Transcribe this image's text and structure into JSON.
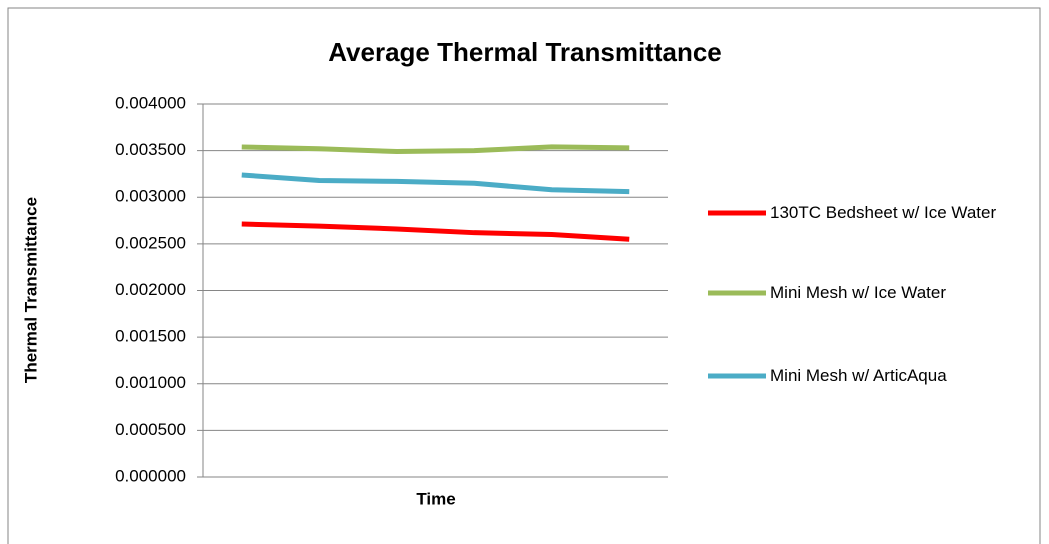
{
  "chart_data": {
    "type": "line",
    "title": "Average Thermal Transmittance",
    "x_label": "Time",
    "y_label": "Thermal Transmittance",
    "categories": [
      null,
      null,
      null,
      null,
      null,
      null
    ],
    "series": [
      {
        "name": "130TC Bedsheet w/ Ice Water",
        "color": "#ff0000",
        "values": [
          0.002713,
          0.00269,
          0.00266,
          0.00262,
          0.0026,
          0.00255
        ]
      },
      {
        "name": "Mini Mesh w/ Ice Water",
        "color": "#9bbb59",
        "values": [
          0.003539,
          0.00352,
          0.00349,
          0.0035,
          0.00354,
          0.00353
        ]
      },
      {
        "name": "Mini Mesh w/ ArticAqua",
        "color": "#4bacc6",
        "values": [
          0.003239,
          0.00318,
          0.00317,
          0.00315,
          0.00308,
          0.00306
        ]
      }
    ],
    "ylim": [
      0,
      0.004
    ],
    "yticks": [
      {
        "value": 0,
        "label": "0.000000"
      },
      {
        "value": 0.0005,
        "label": "0.000500"
      },
      {
        "value": 0.001,
        "label": "0.001000"
      },
      {
        "value": 0.0015,
        "label": "0.001500"
      },
      {
        "value": 0.002,
        "label": "0.002000"
      },
      {
        "value": 0.0025,
        "label": "0.002500"
      },
      {
        "value": 0.003,
        "label": "0.003000"
      },
      {
        "value": 0.0035,
        "label": "0.003500"
      },
      {
        "value": 0.004,
        "label": "0.004000"
      }
    ],
    "grid": true,
    "legend": "right"
  }
}
